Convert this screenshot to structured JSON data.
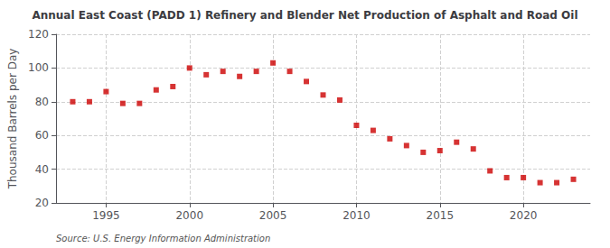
{
  "chart_data": {
    "type": "scatter",
    "title": "Annual East Coast (PADD 1) Refinery and Blender Net Production of Asphalt and Road Oil",
    "ylabel": "Thousand Barrels per Day",
    "annotation": "Source: U.S. Energy Information Administration",
    "x": [
      1993,
      1994,
      1995,
      1996,
      1997,
      1998,
      1999,
      2000,
      2001,
      2002,
      2003,
      2004,
      2005,
      2006,
      2007,
      2008,
      2009,
      2010,
      2011,
      2012,
      2013,
      2014,
      2015,
      2016,
      2017,
      2018,
      2019,
      2020,
      2021,
      2022,
      2023
    ],
    "values": [
      80,
      80,
      86,
      79,
      79,
      87,
      89,
      100,
      96,
      98,
      95,
      98,
      103,
      98,
      92,
      84,
      81,
      66,
      63,
      58,
      54,
      50,
      51,
      56,
      52,
      39,
      35,
      35,
      32,
      32,
      34
    ],
    "color": "#cc0000",
    "marker": "square",
    "xlim": [
      1992,
      2024
    ],
    "xticks": [
      1995,
      2000,
      2005,
      2010,
      2015,
      2020
    ],
    "ylim": [
      20,
      120
    ],
    "yticks": [
      20,
      40,
      60,
      80,
      100,
      120
    ],
    "grid": true
  }
}
